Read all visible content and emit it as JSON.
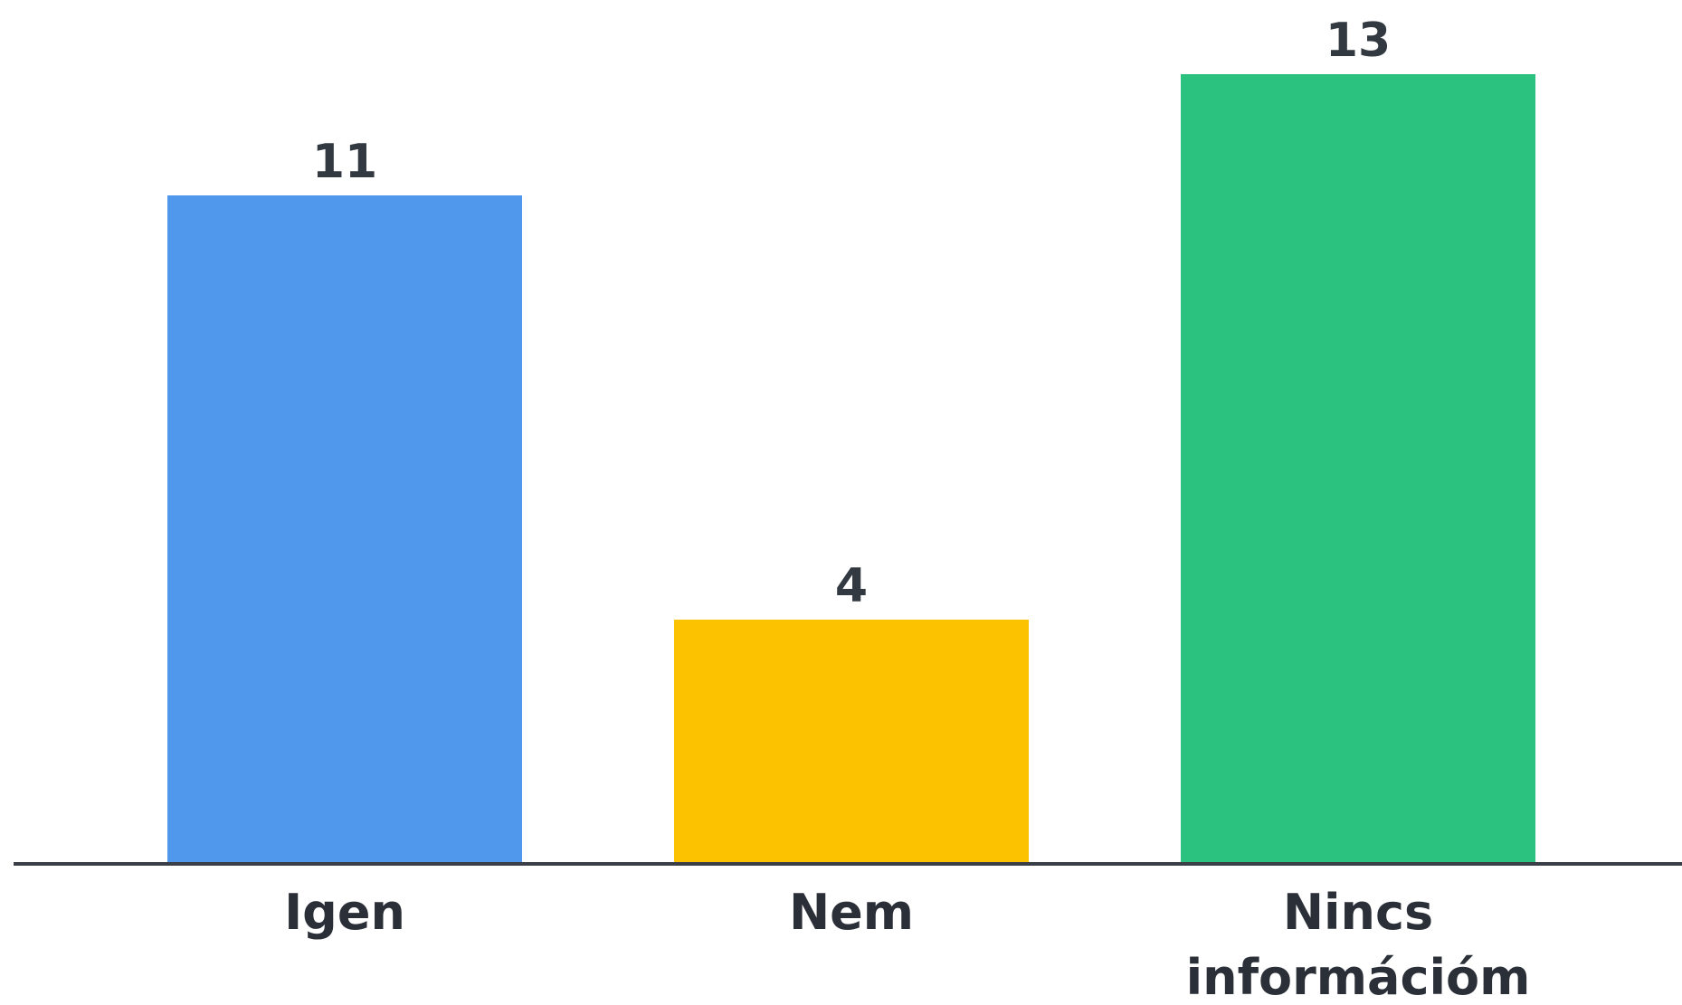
{
  "chart_data": {
    "type": "bar",
    "categories": [
      [
        "Igen"
      ],
      [
        "Nem"
      ],
      [
        "Nincs",
        "információm"
      ]
    ],
    "values": [
      11,
      4,
      13
    ],
    "value_labels": [
      "11",
      "4",
      "13"
    ],
    "colors": [
      "#4F98EC",
      "#FCC200",
      "#2AC27E"
    ],
    "ylim": [
      0,
      13
    ],
    "grid": false,
    "legend": "none",
    "title": "",
    "xlabel": "",
    "ylabel": ""
  }
}
